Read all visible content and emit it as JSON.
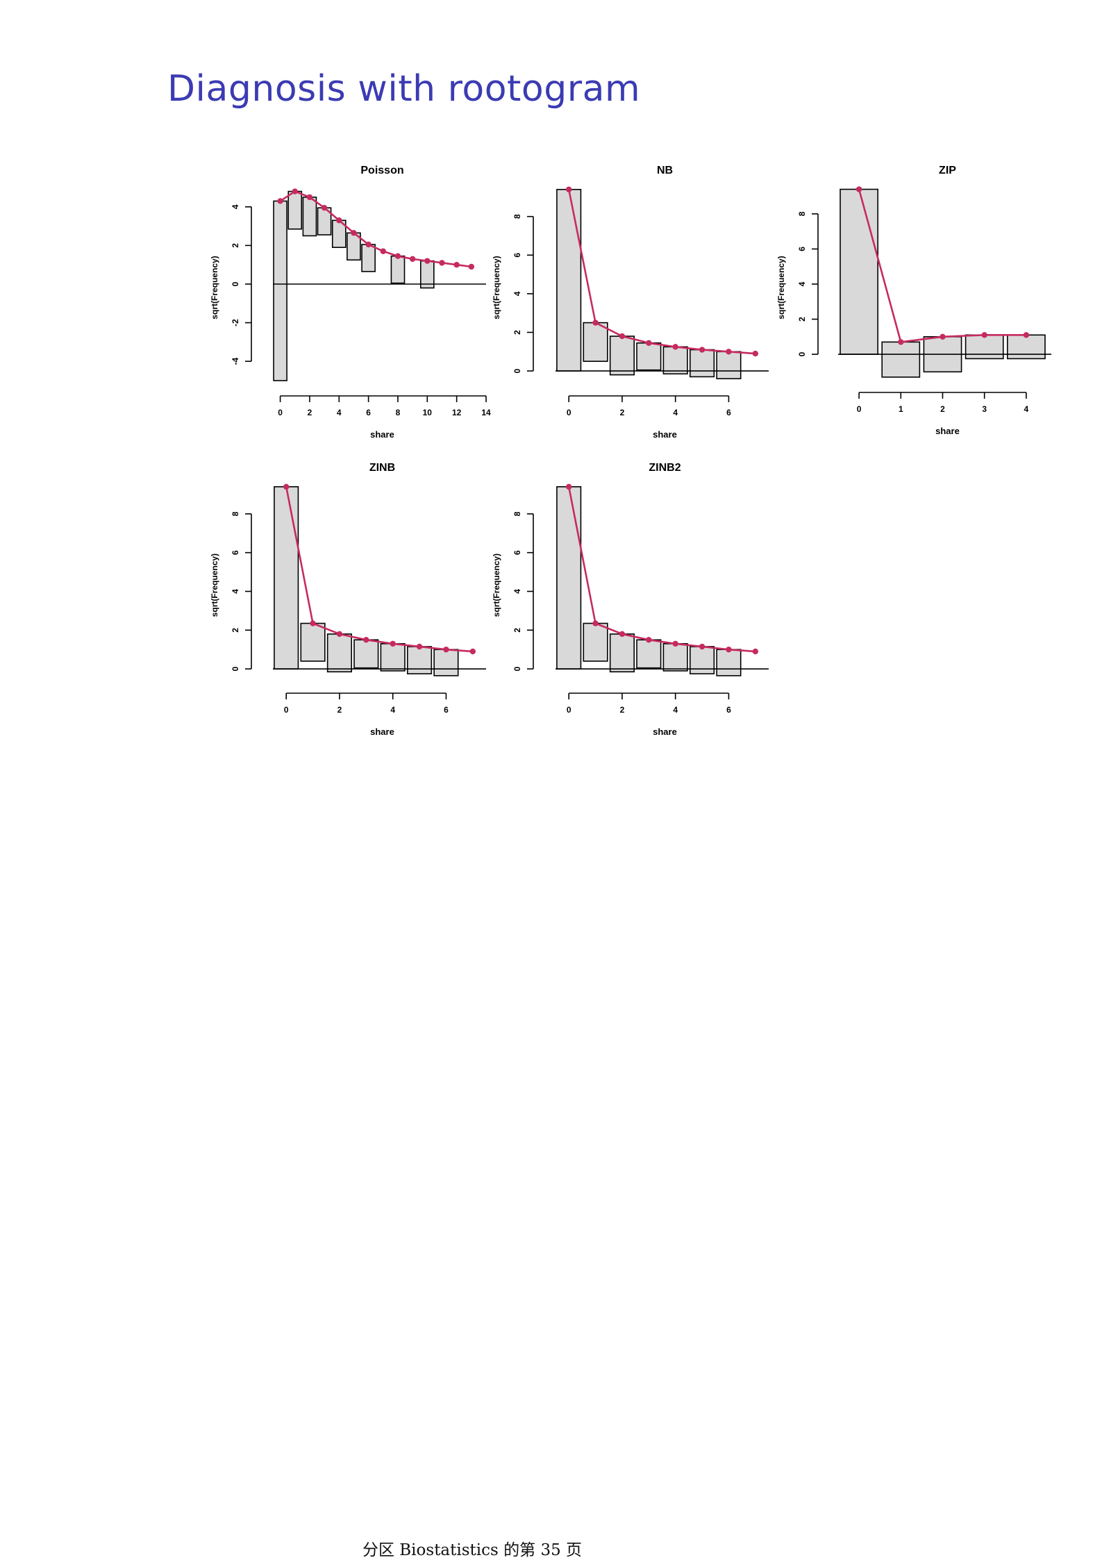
{
  "slide": {
    "title": "Diagnosis with rootogram"
  },
  "footer": {
    "text": "分区 Biostatistics 的第 35 页"
  },
  "colors": {
    "title": "#3b3bb3",
    "bar_fill": "#d9d9d9",
    "bar_stroke": "#000000",
    "fit_line": "#c62b5e"
  },
  "chart_data": [
    {
      "type": "bar",
      "subtype": "hanging-rootogram",
      "title": "Poisson",
      "xlabel": "share",
      "ylabel": "sqrt(Frequency)",
      "xlim": [
        -0.5,
        14
      ],
      "ylim": [
        -5,
        5
      ],
      "xticks": [
        0,
        2,
        4,
        6,
        8,
        10,
        12,
        14
      ],
      "yticks": [
        -4,
        -2,
        0,
        2,
        4
      ],
      "x": [
        0,
        1,
        2,
        3,
        4,
        5,
        6,
        7,
        8,
        9,
        10,
        11,
        12,
        13
      ],
      "expected": [
        4.3,
        4.8,
        4.5,
        3.95,
        3.3,
        2.65,
        2.05,
        1.7,
        1.45,
        1.3,
        1.2,
        1.1,
        1.0,
        0.9
      ],
      "bar_bottom": [
        -5.0,
        2.85,
        2.5,
        2.55,
        1.9,
        1.25,
        0.65,
        1.7,
        0.05,
        1.3,
        -0.2,
        1.1,
        1.0,
        0.9
      ]
    },
    {
      "type": "bar",
      "subtype": "hanging-rootogram",
      "title": "NB",
      "xlabel": "share",
      "ylabel": "sqrt(Frequency)",
      "xlim": [
        -0.5,
        7.5
      ],
      "ylim": [
        -0.5,
        9.5
      ],
      "xticks": [
        0,
        2,
        4,
        6
      ],
      "yticks": [
        0,
        2,
        4,
        6,
        8
      ],
      "x": [
        0,
        1,
        2,
        3,
        4,
        5,
        6,
        7
      ],
      "expected": [
        9.4,
        2.5,
        1.8,
        1.45,
        1.25,
        1.1,
        1.0,
        0.9
      ],
      "bar_bottom": [
        0.0,
        0.5,
        -0.2,
        0.05,
        -0.15,
        -0.3,
        -0.4,
        0.9
      ]
    },
    {
      "type": "bar",
      "subtype": "hanging-rootogram",
      "title": "ZIP",
      "xlabel": "share",
      "ylabel": "sqrt(Frequency)",
      "xlim": [
        -0.5,
        4.6
      ],
      "ylim": [
        -1.5,
        9.5
      ],
      "xticks": [
        0,
        1,
        2,
        3,
        4
      ],
      "yticks": [
        0,
        2,
        4,
        6,
        8
      ],
      "x": [
        0,
        1,
        2,
        3,
        4
      ],
      "expected": [
        9.4,
        0.7,
        1.0,
        1.1,
        1.1
      ],
      "bar_bottom": [
        0.0,
        -1.3,
        -1.0,
        -0.25,
        -0.25
      ]
    },
    {
      "type": "bar",
      "subtype": "hanging-rootogram",
      "title": "ZINB",
      "xlabel": "share",
      "ylabel": "sqrt(Frequency)",
      "xlim": [
        -0.5,
        7.5
      ],
      "ylim": [
        -0.5,
        9.5
      ],
      "xticks": [
        0,
        2,
        4,
        6
      ],
      "yticks": [
        0,
        2,
        4,
        6,
        8
      ],
      "x": [
        0,
        1,
        2,
        3,
        4,
        5,
        6,
        7
      ],
      "expected": [
        9.4,
        2.35,
        1.8,
        1.5,
        1.3,
        1.15,
        1.0,
        0.9
      ],
      "bar_bottom": [
        0.0,
        0.4,
        -0.15,
        0.05,
        -0.1,
        -0.25,
        -0.35,
        0.9
      ]
    },
    {
      "type": "bar",
      "subtype": "hanging-rootogram",
      "title": "ZINB2",
      "xlabel": "share",
      "ylabel": "sqrt(Frequency)",
      "xlim": [
        -0.5,
        7.5
      ],
      "ylim": [
        -0.5,
        9.5
      ],
      "xticks": [
        0,
        2,
        4,
        6
      ],
      "yticks": [
        0,
        2,
        4,
        6,
        8
      ],
      "x": [
        0,
        1,
        2,
        3,
        4,
        5,
        6,
        7
      ],
      "expected": [
        9.4,
        2.35,
        1.8,
        1.5,
        1.3,
        1.15,
        1.0,
        0.9
      ],
      "bar_bottom": [
        0.0,
        0.4,
        -0.15,
        0.05,
        -0.1,
        -0.25,
        -0.35,
        0.9
      ]
    }
  ]
}
